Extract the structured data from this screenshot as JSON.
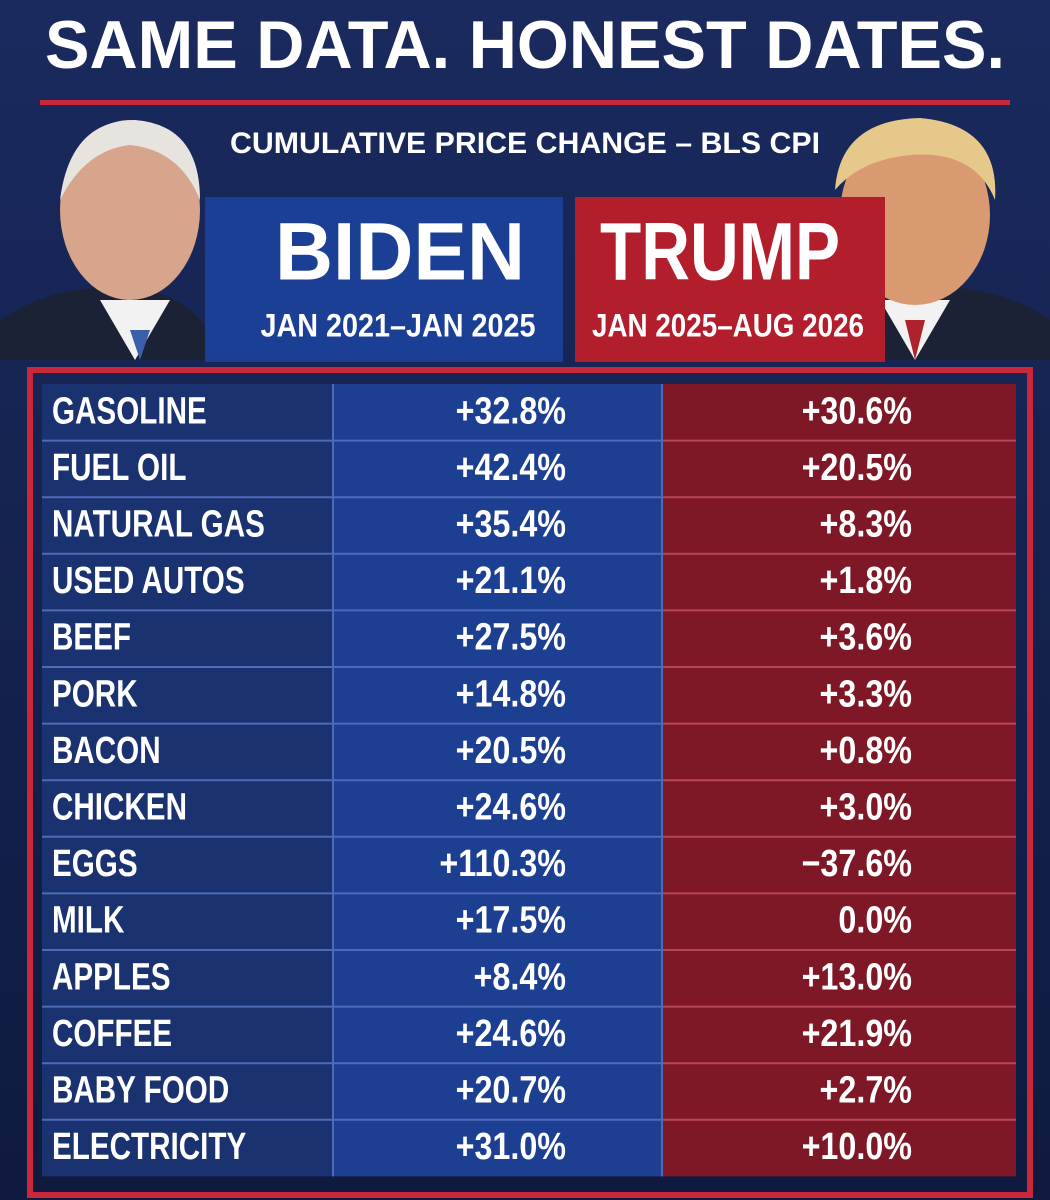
{
  "header": {
    "title": "SAME DATA. HONEST DATES.",
    "subtitle": "CUMULATIVE PRICE CHANGE – BLS CPI"
  },
  "columns": [
    {
      "name": "BIDEN",
      "dates": "JAN 2021–JAN 2025"
    },
    {
      "name": "TRUMP",
      "dates": "JAN 2025–AUG 2026"
    }
  ],
  "table": {
    "rows": [
      [
        "GASOLINE",
        "+32.8%",
        "+30.6%"
      ],
      [
        "FUEL OIL",
        "+42.4%",
        "+20.5%"
      ],
      [
        "NATURAL GAS",
        "+35.4%",
        "+8.3%"
      ],
      [
        "USED AUTOS",
        "+21.1%",
        "+1.8%"
      ],
      [
        "BEEF",
        "+27.5%",
        "+3.6%"
      ],
      [
        "PORK",
        "+14.8%",
        "+3.3%"
      ],
      [
        "BACON",
        "+20.5%",
        "+0.8%"
      ],
      [
        "CHICKEN",
        "+24.6%",
        "+3.0%"
      ],
      [
        "EGGS",
        "+110.3%",
        "−37.6%"
      ],
      [
        "MILK",
        "+17.5%",
        "0.0%"
      ],
      [
        "APPLES",
        "+8.4%",
        "+13.0%"
      ],
      [
        "COFFEE",
        "+24.6%",
        "+21.9%"
      ],
      [
        "BABY FOOD",
        "+20.7%",
        "+2.7%"
      ],
      [
        "ELECTRICITY",
        "+31.0%",
        "+10.0%"
      ]
    ]
  }
}
